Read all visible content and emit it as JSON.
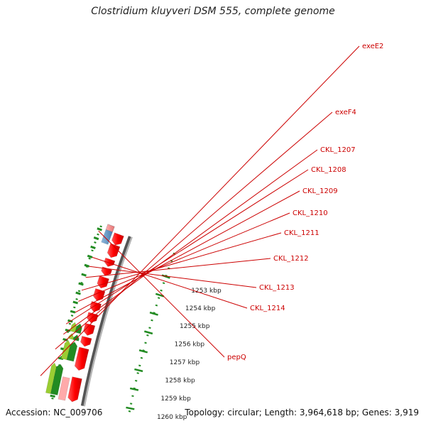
{
  "title": "Clostridium kluyveri DSM 555, complete genome",
  "footer": {
    "accession": "Accession: NC_009706",
    "stats": "Topology: circular; Length: 3,964,618 bp; Genes: 3,919"
  },
  "colors": {
    "gene_forward": "#ff0000",
    "gene_forward_light": "#f08080",
    "gene_reverse_dark": "#228b22",
    "gene_reverse_light": "#9acd32",
    "gene_blue": "#4682b4",
    "gene_grey": "#666666",
    "backbone": "#808080",
    "ruler": "#228b22",
    "label": "#cc0000"
  },
  "ticks": [
    {
      "label": "1253 kbp"
    },
    {
      "label": "1254 kbp"
    },
    {
      "label": "1255 kbp"
    },
    {
      "label": "1256 kbp"
    },
    {
      "label": "1257 kbp"
    },
    {
      "label": "1258 kbp"
    },
    {
      "label": "1259 kbp"
    },
    {
      "label": "1260 kbp"
    }
  ],
  "gene_labels": [
    {
      "label": "exeE2"
    },
    {
      "label": "exeF4"
    },
    {
      "label": "CKL_1207"
    },
    {
      "label": "CKL_1208"
    },
    {
      "label": "CKL_1209"
    },
    {
      "label": "CKL_1210"
    },
    {
      "label": "CKL_1211"
    },
    {
      "label": "CKL_1212"
    },
    {
      "label": "CKL_1213"
    },
    {
      "label": "CKL_1214"
    },
    {
      "label": "pepQ"
    }
  ]
}
